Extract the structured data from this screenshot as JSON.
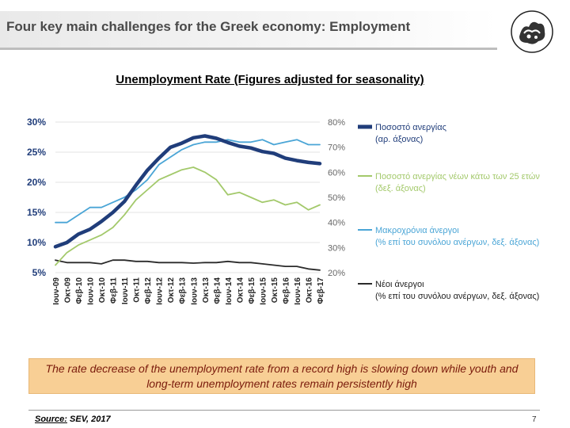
{
  "header": {
    "title": "Four key main challenges for the Greek economy: Employment"
  },
  "callout": {
    "text": "The rate decrease of the unemployment rate from a record high is slowing down while youth and long-term unemployment rates remain persistently high"
  },
  "footer": {
    "source_label": "Source:",
    "source_value": " SEV, 2017",
    "page_number": "7"
  },
  "chart_data": {
    "type": "line",
    "title": "Unemployment Rate (Figures adjusted for seasonality)",
    "x_tick_labels": [
      "Ιουν-09",
      "Οκτ-09",
      "Φεβ-10",
      "Ιουν-10",
      "Οκτ-10",
      "Φεβ-11",
      "Ιουν-11",
      "Οκτ-11",
      "Φεβ-12",
      "Ιουν-12",
      "Οκτ-12",
      "Φεβ-13",
      "Ιουν-13",
      "Οκτ-13",
      "Φεβ-14",
      "Ιουν-14",
      "Οκτ-14",
      "Φεβ-15",
      "Ιουν-15",
      "Οκτ-15",
      "Φεβ-16",
      "Ιουν-16",
      "Οκτ-16",
      "Φεβ-17"
    ],
    "y_left": {
      "ticks": [
        "30%",
        "25%",
        "20%",
        "15%",
        "10%",
        "5%"
      ],
      "lim": [
        5,
        30
      ]
    },
    "y_right": {
      "ticks": [
        "80%",
        "70%",
        "60%",
        "50%",
        "40%",
        "30%",
        "20%"
      ],
      "lim": [
        20,
        80
      ]
    },
    "grid": true,
    "legend_position": "right",
    "series": [
      {
        "name": "Ποσοστό ανεργίας",
        "name_line2": "(αρ. άξονας)",
        "axis": "left",
        "color": "#203d7a",
        "values": [
          9.3,
          10.0,
          11.4,
          12.2,
          13.5,
          15.0,
          16.8,
          19.5,
          22.0,
          24.0,
          25.8,
          26.5,
          27.4,
          27.7,
          27.3,
          26.6,
          26.0,
          25.7,
          25.1,
          24.8,
          24.0,
          23.6,
          23.3,
          23.1
        ]
      },
      {
        "name": "Ποσοστό ανεργίας νέων κάτω των 25 ετών",
        "name_line2": "(δεξ. άξονας)",
        "axis": "right",
        "color": "#a3c96b",
        "values": [
          23,
          28,
          31,
          33,
          35,
          38,
          43,
          49,
          53,
          57,
          59,
          61,
          62,
          60,
          57,
          51,
          52,
          50,
          48,
          49,
          47,
          48,
          45,
          47
        ]
      },
      {
        "name": "Μακροχρόνια άνεργοι",
        "name_line2": "(% επί του συνόλου ανέργων, δεξ. άξονας)",
        "axis": "right",
        "color": "#4aa5d6",
        "values": [
          40,
          40,
          43,
          46,
          46,
          48,
          50,
          53,
          57,
          63,
          66,
          69,
          71,
          72,
          72,
          73,
          72,
          72,
          73,
          71,
          72,
          73,
          71,
          71
        ]
      },
      {
        "name": "Νέοι άνεργοι",
        "name_line2": "(% επί του συνόλου ανέργων, δεξ. άξονας)",
        "axis": "right",
        "color": "#2b2b2b",
        "values": [
          25,
          24,
          24,
          24,
          23.5,
          25,
          25,
          24.5,
          24.5,
          24,
          24,
          24,
          23.8,
          24,
          24,
          24.5,
          24,
          24,
          23.5,
          23,
          22.5,
          22.5,
          21.5,
          21
        ]
      }
    ]
  }
}
